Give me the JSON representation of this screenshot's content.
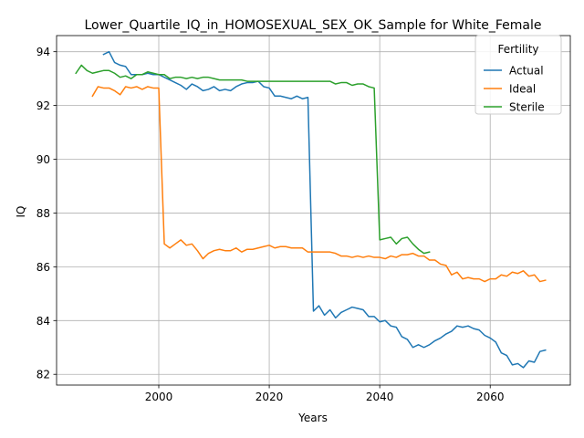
{
  "chart_data": {
    "type": "line",
    "title": "Lower_Quartile_IQ_in_HOMOSEXUAL_SEX_OK_Sample for White_Female",
    "xlabel": "Years",
    "ylabel": "IQ",
    "xlim": [
      1981.5,
      2074.5
    ],
    "ylim": [
      81.6,
      94.6
    ],
    "xticks": [
      2000,
      2020,
      2040,
      2060
    ],
    "yticks": [
      82,
      84,
      86,
      88,
      90,
      92,
      94
    ],
    "grid": true,
    "legend": {
      "title": "Fertility",
      "placement": "upper-right"
    },
    "series": [
      {
        "name": "Actual",
        "color": "#1f77b4",
        "x": [
          1990,
          1991,
          1992,
          1993,
          1994,
          1995,
          1996,
          1997,
          1998,
          1999,
          2000,
          2001,
          2002,
          2003,
          2004,
          2005,
          2006,
          2007,
          2008,
          2009,
          2010,
          2011,
          2012,
          2013,
          2014,
          2015,
          2016,
          2017,
          2018,
          2019,
          2020,
          2021,
          2022,
          2023,
          2024,
          2025,
          2026,
          2027,
          2028,
          2029,
          2030,
          2031,
          2032,
          2033,
          2034,
          2035,
          2036,
          2037,
          2038,
          2039,
          2040,
          2041,
          2042,
          2043,
          2044,
          2045,
          2046,
          2047,
          2048,
          2049,
          2050,
          2051,
          2052,
          2053,
          2054,
          2055,
          2056,
          2057,
          2058,
          2059,
          2060,
          2061,
          2062,
          2063,
          2064,
          2065,
          2066,
          2067,
          2068,
          2069,
          2070
        ],
        "values": [
          93.9,
          94.0,
          93.6,
          93.5,
          93.45,
          93.15,
          93.15,
          93.15,
          93.2,
          93.15,
          93.15,
          93.05,
          92.95,
          92.85,
          92.75,
          92.6,
          92.8,
          92.7,
          92.55,
          92.6,
          92.7,
          92.55,
          92.6,
          92.55,
          92.7,
          92.8,
          92.85,
          92.85,
          92.9,
          92.7,
          92.65,
          92.35,
          92.35,
          92.3,
          92.25,
          92.35,
          92.25,
          92.3,
          84.35,
          84.55,
          84.2,
          84.4,
          84.1,
          84.3,
          84.4,
          84.5,
          84.45,
          84.4,
          84.15,
          84.15,
          83.95,
          84.0,
          83.8,
          83.75,
          83.4,
          83.3,
          83.0,
          83.1,
          83.0,
          83.1,
          83.25,
          83.35,
          83.5,
          83.6,
          83.8,
          83.75,
          83.8,
          83.7,
          83.65,
          83.45,
          83.35,
          83.2,
          82.8,
          82.7,
          82.35,
          82.4,
          82.25,
          82.5,
          82.45,
          82.85,
          82.9
        ]
      },
      {
        "name": "Ideal",
        "color": "#ff7f0e",
        "x": [
          1988,
          1989,
          1990,
          1991,
          1992,
          1993,
          1994,
          1995,
          1996,
          1997,
          1998,
          1999,
          2000,
          2001,
          2002,
          2003,
          2004,
          2005,
          2006,
          2007,
          2008,
          2009,
          2010,
          2011,
          2012,
          2013,
          2014,
          2015,
          2016,
          2017,
          2018,
          2019,
          2020,
          2021,
          2022,
          2023,
          2024,
          2025,
          2026,
          2027,
          2028,
          2029,
          2030,
          2031,
          2032,
          2033,
          2034,
          2035,
          2036,
          2037,
          2038,
          2039,
          2040,
          2041,
          2042,
          2043,
          2044,
          2045,
          2046,
          2047,
          2048,
          2049,
          2050,
          2051,
          2052,
          2053,
          2054,
          2055,
          2056,
          2057,
          2058,
          2059,
          2060,
          2061,
          2062,
          2063,
          2064,
          2065,
          2066,
          2067,
          2068,
          2069,
          2070
        ],
        "values": [
          92.35,
          92.7,
          92.65,
          92.65,
          92.55,
          92.4,
          92.7,
          92.65,
          92.7,
          92.6,
          92.7,
          92.65,
          92.65,
          86.85,
          86.7,
          86.85,
          87.0,
          86.8,
          86.85,
          86.6,
          86.3,
          86.5,
          86.6,
          86.65,
          86.6,
          86.6,
          86.7,
          86.55,
          86.65,
          86.65,
          86.7,
          86.75,
          86.8,
          86.7,
          86.75,
          86.75,
          86.7,
          86.7,
          86.7,
          86.55,
          86.55,
          86.55,
          86.55,
          86.55,
          86.5,
          86.4,
          86.4,
          86.35,
          86.4,
          86.35,
          86.4,
          86.35,
          86.35,
          86.3,
          86.4,
          86.35,
          86.45,
          86.45,
          86.5,
          86.4,
          86.4,
          86.25,
          86.25,
          86.1,
          86.05,
          85.7,
          85.8,
          85.55,
          85.6,
          85.55,
          85.55,
          85.45,
          85.55,
          85.55,
          85.7,
          85.65,
          85.8,
          85.75,
          85.85,
          85.65,
          85.7,
          85.45,
          85.5
        ]
      },
      {
        "name": "Sterile",
        "color": "#2ca02c",
        "x": [
          1985,
          1986,
          1987,
          1988,
          1989,
          1990,
          1991,
          1992,
          1993,
          1994,
          1995,
          1996,
          1997,
          1998,
          1999,
          2000,
          2001,
          2002,
          2003,
          2004,
          2005,
          2006,
          2007,
          2008,
          2009,
          2010,
          2011,
          2012,
          2013,
          2014,
          2015,
          2016,
          2017,
          2018,
          2019,
          2020,
          2021,
          2022,
          2023,
          2024,
          2025,
          2026,
          2027,
          2028,
          2029,
          2030,
          2031,
          2032,
          2033,
          2034,
          2035,
          2036,
          2037,
          2038,
          2039,
          2040,
          2041,
          2042,
          2043,
          2044,
          2045,
          2046,
          2047,
          2048,
          2049
        ],
        "values": [
          93.2,
          93.5,
          93.3,
          93.2,
          93.25,
          93.3,
          93.3,
          93.2,
          93.05,
          93.1,
          93.0,
          93.15,
          93.15,
          93.25,
          93.2,
          93.15,
          93.15,
          93.0,
          93.05,
          93.05,
          93.0,
          93.05,
          93.0,
          93.05,
          93.05,
          93.0,
          92.95,
          92.95,
          92.95,
          92.95,
          92.95,
          92.9,
          92.9,
          92.9,
          92.9,
          92.9,
          92.9,
          92.9,
          92.9,
          92.9,
          92.9,
          92.9,
          92.9,
          92.9,
          92.9,
          92.9,
          92.9,
          92.8,
          92.85,
          92.85,
          92.75,
          92.8,
          92.8,
          92.7,
          92.65,
          87.0,
          87.05,
          87.1,
          86.85,
          87.05,
          87.1,
          86.85,
          86.65,
          86.5,
          86.55
        ]
      }
    ]
  }
}
